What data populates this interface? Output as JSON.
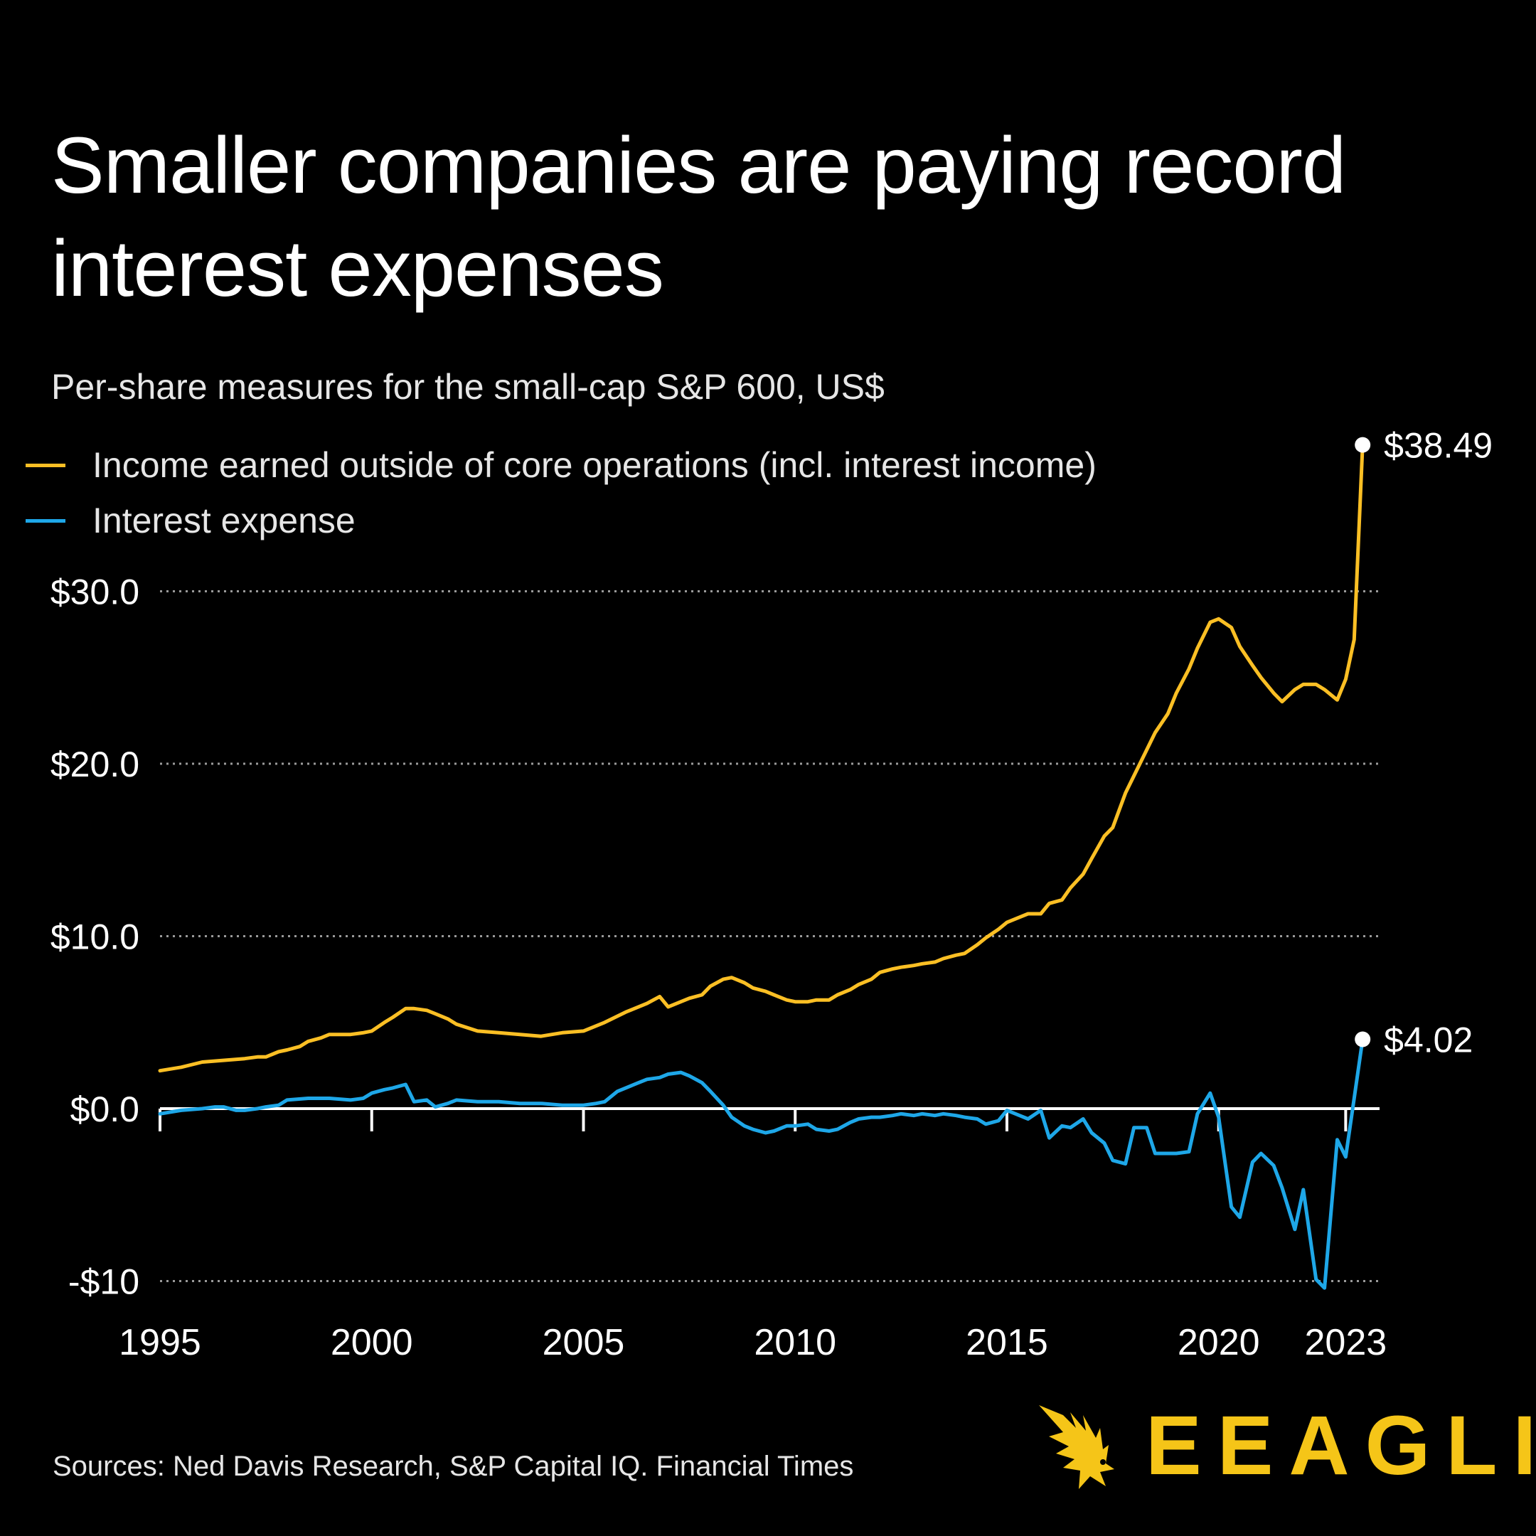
{
  "title": "Smaller companies are paying record interest expenses",
  "subtitle": "Per-share measures for the small-cap S&P 600, US$",
  "source": "Sources: Ned Davis Research, S&P Capital IQ. Financial Times",
  "brand": {
    "name": "EEAGLI",
    "logo_icon": "eagle-icon"
  },
  "colors": {
    "income": "#fbbf24",
    "expense": "#1ea7e8",
    "background": "#000000",
    "grid": "#9a9a9a",
    "brand": "#f5c518"
  },
  "chart_data": {
    "type": "line",
    "title": "Smaller companies are paying record interest expenses",
    "ylabel": "Per-share measures for the small-cap S&P 600, US$",
    "xlim": [
      1995,
      2023.8
    ],
    "ylim": [
      -10,
      38.49
    ],
    "yticks": [
      30,
      20,
      10,
      0,
      -10
    ],
    "ytick_labels": [
      "$30.0",
      "$20.0",
      "$10.0",
      "$0.0",
      "-$10"
    ],
    "xticks": [
      1995,
      2000,
      2005,
      2010,
      2015,
      2020,
      2023
    ],
    "xtick_labels": [
      "1995",
      "2000",
      "2005",
      "2010",
      "2015",
      "2020",
      "2023"
    ],
    "grid": "horizontal dotted",
    "legend": "top-left",
    "series": [
      {
        "name": "Income earned outside of core operations (incl. interest income)",
        "color": "#fbbf24",
        "end_label": "$38.49",
        "x": [
          1995,
          1995.5,
          1996,
          1996.5,
          1997,
          1997.3,
          1997.5,
          1997.8,
          1998,
          1998.3,
          1998.5,
          1998.8,
          1999,
          1999.3,
          1999.5,
          1999.8,
          2000,
          2000.3,
          2000.5,
          2000.8,
          2001,
          2001.3,
          2001.5,
          2001.8,
          2002,
          2002.5,
          2003,
          2003.5,
          2004,
          2004.5,
          2005,
          2005.5,
          2006,
          2006.5,
          2006.8,
          2007,
          2007.3,
          2007.5,
          2007.8,
          2008,
          2008.3,
          2008.5,
          2008.8,
          2009,
          2009.3,
          2009.5,
          2009.8,
          2010,
          2010.3,
          2010.5,
          2010.8,
          2011,
          2011.3,
          2011.5,
          2011.8,
          2012,
          2012.3,
          2012.5,
          2012.8,
          2013,
          2013.3,
          2013.5,
          2013.8,
          2014,
          2014.3,
          2014.5,
          2014.8,
          2015,
          2015.3,
          2015.5,
          2015.8,
          2016,
          2016.3,
          2016.5,
          2016.8,
          2017,
          2017.3,
          2017.5,
          2017.8,
          2018,
          2018.3,
          2018.5,
          2018.8,
          2019,
          2019.3,
          2019.5,
          2019.8,
          2020,
          2020.3,
          2020.5,
          2020.8,
          2021,
          2021.3,
          2021.5,
          2021.8,
          2022,
          2022.3,
          2022.5,
          2022.8,
          2023,
          2023.2,
          2023.4
        ],
        "values": [
          2.2,
          2.4,
          2.7,
          2.8,
          2.9,
          3.0,
          3.0,
          3.3,
          3.4,
          3.6,
          3.9,
          4.1,
          4.3,
          4.3,
          4.3,
          4.4,
          4.5,
          5.0,
          5.3,
          5.8,
          5.8,
          5.7,
          5.5,
          5.2,
          4.9,
          4.5,
          4.4,
          4.3,
          4.2,
          4.4,
          4.5,
          5.0,
          5.6,
          6.1,
          6.5,
          5.9,
          6.2,
          6.4,
          6.6,
          7.1,
          7.5,
          7.6,
          7.3,
          7.0,
          6.8,
          6.6,
          6.3,
          6.2,
          6.2,
          6.3,
          6.3,
          6.6,
          6.9,
          7.2,
          7.5,
          7.9,
          8.1,
          8.2,
          8.3,
          8.4,
          8.5,
          8.7,
          8.9,
          9.0,
          9.5,
          9.9,
          10.4,
          10.8,
          11.1,
          11.3,
          11.3,
          11.9,
          12.1,
          12.8,
          13.6,
          14.5,
          15.8,
          16.3,
          18.3,
          19.3,
          20.8,
          21.8,
          22.9,
          24.1,
          25.5,
          26.7,
          28.2,
          28.4,
          27.9,
          26.8,
          25.7,
          25.0,
          24.1,
          23.6,
          24.3,
          24.6,
          24.6,
          24.3,
          23.7,
          24.9,
          27.2,
          38.49
        ]
      },
      {
        "name": "Interest expense",
        "color": "#1ea7e8",
        "end_label": "$4.02",
        "x": [
          1995,
          1995.5,
          1996,
          1996.3,
          1996.5,
          1996.8,
          1997,
          1997.3,
          1997.5,
          1997.8,
          1998,
          1998.5,
          1999,
          1999.5,
          1999.8,
          2000,
          2000.3,
          2000.5,
          2000.8,
          2001,
          2001.3,
          2001.5,
          2001.8,
          2002,
          2002.5,
          2003,
          2003.5,
          2004,
          2004.5,
          2005,
          2005.3,
          2005.5,
          2005.8,
          2006,
          2006.3,
          2006.5,
          2006.8,
          2007,
          2007.3,
          2007.5,
          2007.8,
          2008,
          2008.3,
          2008.5,
          2008.8,
          2009,
          2009.3,
          2009.5,
          2009.8,
          2010,
          2010.3,
          2010.5,
          2010.8,
          2011,
          2011.3,
          2011.5,
          2011.8,
          2012,
          2012.3,
          2012.5,
          2012.8,
          2013,
          2013.3,
          2013.5,
          2013.8,
          2014,
          2014.3,
          2014.5,
          2014.8,
          2015,
          2015.3,
          2015.5,
          2015.8,
          2016,
          2016.3,
          2016.5,
          2016.8,
          2017,
          2017.3,
          2017.5,
          2017.8,
          2018,
          2018.3,
          2018.5,
          2018.8,
          2019,
          2019.3,
          2019.5,
          2019.8,
          2020,
          2020.3,
          2020.5,
          2020.8,
          2021,
          2021.3,
          2021.5,
          2021.8,
          2022,
          2022.3,
          2022.5,
          2022.8,
          2023,
          2023.2,
          2023.4
        ],
        "values": [
          -0.3,
          -0.1,
          0.0,
          0.1,
          0.1,
          -0.1,
          -0.1,
          0.0,
          0.1,
          0.2,
          0.5,
          0.6,
          0.6,
          0.5,
          0.6,
          0.9,
          1.1,
          1.2,
          1.4,
          0.4,
          0.5,
          0.1,
          0.3,
          0.5,
          0.4,
          0.4,
          0.3,
          0.3,
          0.2,
          0.2,
          0.3,
          0.4,
          1.0,
          1.2,
          1.5,
          1.7,
          1.8,
          2.0,
          2.1,
          1.9,
          1.5,
          1.0,
          0.2,
          -0.5,
          -1.0,
          -1.2,
          -1.4,
          -1.3,
          -1.0,
          -1.0,
          -0.9,
          -1.2,
          -1.3,
          -1.2,
          -0.8,
          -0.6,
          -0.5,
          -0.5,
          -0.4,
          -0.3,
          -0.4,
          -0.3,
          -0.4,
          -0.3,
          -0.4,
          -0.5,
          -0.6,
          -0.9,
          -0.7,
          -0.1,
          -0.4,
          -0.6,
          -0.1,
          -1.7,
          -1.0,
          -1.1,
          -0.6,
          -1.4,
          -2.0,
          -3.0,
          -3.2,
          -1.1,
          -1.1,
          -2.6,
          -2.6,
          -2.6,
          -2.5,
          -0.3,
          0.9,
          -0.5,
          -5.7,
          -6.3,
          -3.1,
          -2.6,
          -3.3,
          -4.6,
          -7.0,
          -4.7,
          -9.9,
          -10.4,
          -1.8,
          -2.8,
          0.6,
          4.02
        ]
      }
    ]
  }
}
